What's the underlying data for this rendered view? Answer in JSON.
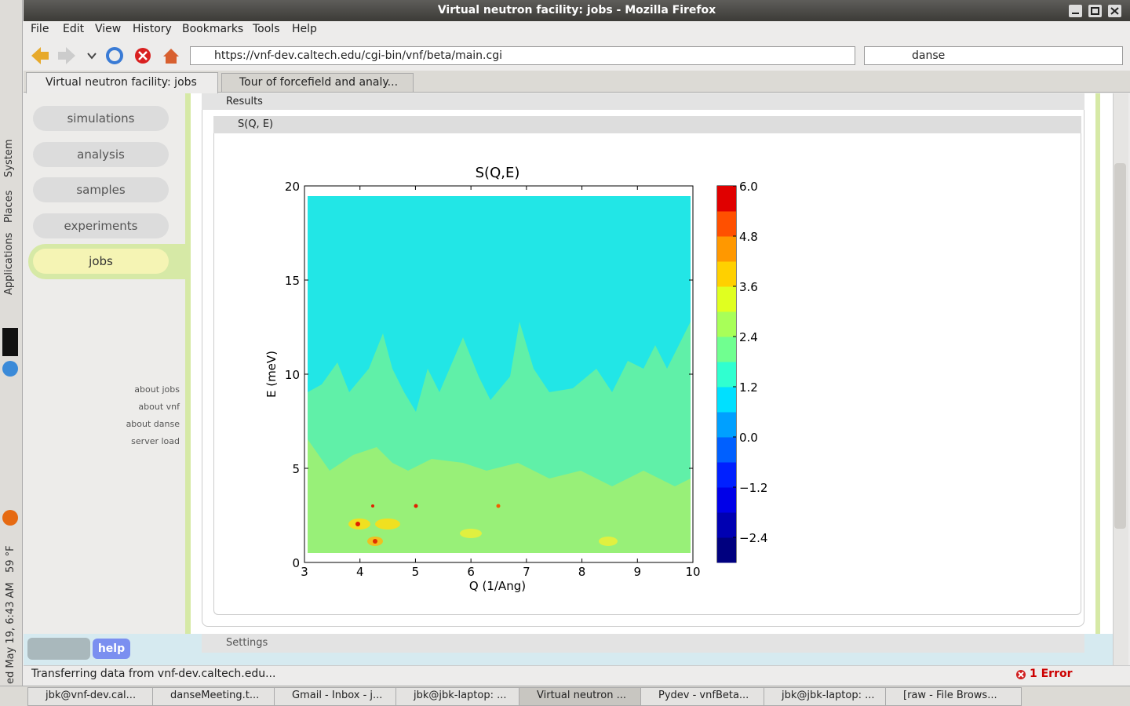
{
  "window_title": "Virtual neutron facility: jobs - Mozilla Firefox",
  "menu": [
    "File",
    "Edit",
    "View",
    "History",
    "Bookmarks",
    "Tools",
    "Help"
  ],
  "url": "https://vnf-dev.caltech.edu/cgi-bin/vnf/beta/main.cgi",
  "search": "danse",
  "tabs": [
    "Virtual neutron facility: jobs",
    "Tour of forcefield and analy..."
  ],
  "sidebar": {
    "nav": [
      "simulations",
      "analysis",
      "samples",
      "experiments",
      "jobs"
    ],
    "links": [
      "about jobs",
      "about vnf",
      "about danse",
      "server load"
    ],
    "help": "help"
  },
  "panels": {
    "results": "Results",
    "plot_panel": "S(Q, E)",
    "settings": "Settings"
  },
  "chart": {
    "type": "contour",
    "title": "S(Q,E)",
    "x_label": "Q (1/Ang)",
    "y_label": "E (meV)",
    "xlim": [
      3,
      10
    ],
    "xticks": [
      3,
      4,
      5,
      6,
      7,
      8,
      9,
      10
    ],
    "ylim": [
      0,
      20
    ],
    "yticks": [
      0,
      5,
      10,
      15,
      20
    ],
    "colorbar": {
      "lim": [
        -3,
        6
      ],
      "ticks": [
        {
          "value": 6,
          "label": "6.0"
        },
        {
          "value": 4.8,
          "label": "4.8"
        },
        {
          "value": 3.6,
          "label": "3.6"
        },
        {
          "value": 2.4,
          "label": "2.4"
        },
        {
          "value": 1.2,
          "label": "1.2"
        },
        {
          "value": 0,
          "label": "0.0"
        },
        {
          "value": -1.2,
          "label": "−1.2"
        },
        {
          "value": -2.4,
          "label": "−2.4"
        }
      ],
      "colors": [
        "#00007f",
        "#0000b2",
        "#0000e8",
        "#0020ff",
        "#0060ff",
        "#00a0ff",
        "#00e0ff",
        "#30ffd0",
        "#70ff90",
        "#a8ff58",
        "#e0ff20",
        "#ffd000",
        "#ff9800",
        "#ff5000",
        "#e00000"
      ]
    }
  },
  "status": {
    "text": "Transferring data from vnf-dev.caltech.edu...",
    "errors": "1 Error"
  },
  "taskbar": [
    "jbk@vnf-dev.cal...",
    "danseMeeting.t...",
    "Gmail - Inbox - j...",
    "jbk@jbk-laptop: ...",
    "Virtual neutron ...",
    "Pydev - vnfBeta...",
    "jbk@jbk-laptop: ...",
    "[raw - File Brows..."
  ],
  "gnome_panel": {
    "menus": [
      "System",
      "Places",
      "Applications"
    ],
    "weather": "59 °F",
    "clock": "ed May 19, 6:43 AM"
  }
}
